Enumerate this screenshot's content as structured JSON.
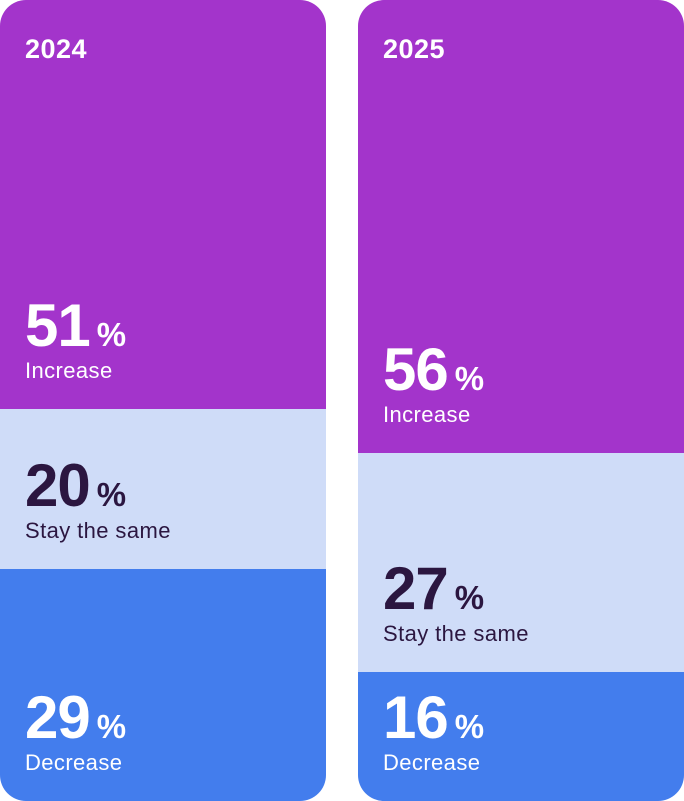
{
  "colors": {
    "increase": "#a334cb",
    "same": "#cfdcf8",
    "decrease": "#437ded",
    "light_text": "#ffffff",
    "dark_text": "#2b1640"
  },
  "chart_data": {
    "type": "bar",
    "stacked": true,
    "orientation": "vertical",
    "categories": [
      "2024",
      "2025"
    ],
    "series": [
      {
        "name": "Increase",
        "values": [
          51,
          56
        ],
        "color": "#a334cb"
      },
      {
        "name": "Stay the same",
        "values": [
          20,
          27
        ],
        "color": "#cfdcf8"
      },
      {
        "name": "Decrease",
        "values": [
          29,
          16
        ],
        "color": "#437ded"
      }
    ],
    "pct_symbol": "%",
    "stack_order_top_to_bottom": [
      "Increase",
      "Stay the same",
      "Decrease"
    ]
  }
}
